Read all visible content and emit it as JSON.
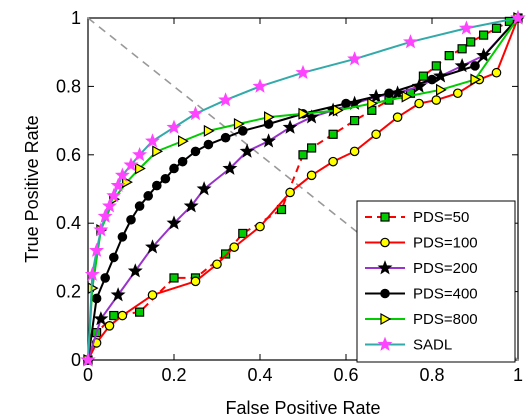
{
  "chart_data": {
    "type": "line",
    "title": "",
    "xlabel": "False Positive Rate",
    "ylabel": "True Positive Rate",
    "xlim": [
      0,
      1
    ],
    "ylim": [
      0,
      1
    ],
    "xticks": [
      "0",
      "0.2",
      "0.4",
      "0.6",
      "0.8",
      "1"
    ],
    "yticks": [
      "0",
      "0.2",
      "0.4",
      "0.6",
      "0.8",
      "1"
    ],
    "grid": false,
    "legend_position": "bottom-right",
    "reference_line": {
      "x": [
        0,
        1
      ],
      "y": [
        1,
        0
      ],
      "color": "#999999",
      "style": "dashed"
    },
    "series": [
      {
        "name": "PDS=50",
        "line_color": "#ff0000",
        "line_style": "dashed",
        "marker": "square",
        "marker_fill": "#00cc00",
        "marker_stroke": "#000000",
        "x": [
          0,
          0.02,
          0.06,
          0.12,
          0.2,
          0.25,
          0.32,
          0.36,
          0.45,
          0.5,
          0.52,
          0.57,
          0.62,
          0.66,
          0.7,
          0.75,
          0.78,
          0.81,
          0.84,
          0.87,
          0.89,
          0.92,
          0.95,
          0.98,
          1.0
        ],
        "y": [
          0,
          0.08,
          0.13,
          0.14,
          0.24,
          0.24,
          0.31,
          0.37,
          0.44,
          0.6,
          0.62,
          0.66,
          0.7,
          0.73,
          0.76,
          0.78,
          0.83,
          0.86,
          0.89,
          0.91,
          0.93,
          0.95,
          0.97,
          0.99,
          1.0
        ]
      },
      {
        "name": "PDS=100",
        "line_color": "#ff0000",
        "line_style": "solid",
        "marker": "circle",
        "marker_fill": "#ffff00",
        "marker_stroke": "#000000",
        "x": [
          0,
          0.02,
          0.05,
          0.08,
          0.15,
          0.25,
          0.3,
          0.34,
          0.4,
          0.47,
          0.52,
          0.57,
          0.62,
          0.67,
          0.72,
          0.77,
          0.81,
          0.86,
          0.91,
          0.95,
          1.0
        ],
        "y": [
          0,
          0.05,
          0.1,
          0.13,
          0.19,
          0.23,
          0.28,
          0.33,
          0.39,
          0.49,
          0.54,
          0.58,
          0.61,
          0.66,
          0.71,
          0.75,
          0.76,
          0.78,
          0.82,
          0.84,
          1.0
        ]
      },
      {
        "name": "PDS=200",
        "line_color": "#9933cc",
        "line_style": "solid",
        "marker": "star",
        "marker_fill": "#000000",
        "marker_stroke": "#000000",
        "x": [
          0,
          0.03,
          0.07,
          0.11,
          0.15,
          0.2,
          0.24,
          0.27,
          0.33,
          0.37,
          0.42,
          0.47,
          0.52,
          0.57,
          0.62,
          0.67,
          0.72,
          0.77,
          0.82,
          0.87,
          0.92,
          1.0
        ],
        "y": [
          0,
          0.12,
          0.19,
          0.26,
          0.33,
          0.4,
          0.45,
          0.5,
          0.56,
          0.61,
          0.64,
          0.68,
          0.71,
          0.73,
          0.75,
          0.77,
          0.78,
          0.8,
          0.83,
          0.86,
          0.89,
          1.0
        ]
      },
      {
        "name": "PDS=400",
        "line_color": "#000000",
        "line_style": "solid",
        "marker": "circle",
        "marker_fill": "#000000",
        "marker_stroke": "#000000",
        "x": [
          0,
          0.02,
          0.04,
          0.06,
          0.08,
          0.1,
          0.12,
          0.14,
          0.16,
          0.18,
          0.2,
          0.22,
          0.25,
          0.28,
          0.32,
          0.36,
          0.42,
          0.5,
          0.6,
          0.7,
          0.8,
          0.9,
          1.0
        ],
        "y": [
          0,
          0.18,
          0.24,
          0.3,
          0.36,
          0.41,
          0.45,
          0.48,
          0.51,
          0.53,
          0.56,
          0.58,
          0.61,
          0.63,
          0.65,
          0.67,
          0.69,
          0.72,
          0.75,
          0.78,
          0.82,
          0.86,
          1.0
        ]
      },
      {
        "name": "PDS=800",
        "line_color": "#00cc00",
        "line_style": "solid",
        "marker": "triangle-right",
        "marker_fill": "#ffff00",
        "marker_stroke": "#000000",
        "x": [
          0,
          0.01,
          0.03,
          0.06,
          0.09,
          0.12,
          0.16,
          0.22,
          0.28,
          0.35,
          0.42,
          0.5,
          0.58,
          0.66,
          0.74,
          0.82,
          0.9,
          1.0
        ],
        "y": [
          0,
          0.21,
          0.38,
          0.47,
          0.52,
          0.56,
          0.61,
          0.64,
          0.67,
          0.69,
          0.71,
          0.72,
          0.73,
          0.75,
          0.77,
          0.79,
          0.82,
          1.0
        ]
      },
      {
        "name": "SADL",
        "line_color": "#33aaaa",
        "line_style": "solid",
        "marker": "star",
        "marker_fill": "#ff44ff",
        "marker_stroke": "#ff44ff",
        "x": [
          0,
          0.01,
          0.02,
          0.03,
          0.04,
          0.05,
          0.06,
          0.07,
          0.08,
          0.1,
          0.12,
          0.15,
          0.2,
          0.25,
          0.32,
          0.4,
          0.5,
          0.62,
          0.75,
          0.88,
          1.0
        ],
        "y": [
          0,
          0.25,
          0.32,
          0.38,
          0.42,
          0.45,
          0.48,
          0.51,
          0.54,
          0.57,
          0.6,
          0.64,
          0.68,
          0.72,
          0.76,
          0.8,
          0.84,
          0.88,
          0.93,
          0.97,
          1.0
        ]
      }
    ]
  }
}
